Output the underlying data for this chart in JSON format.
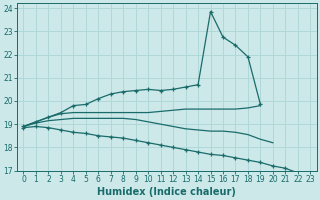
{
  "xlabel": "Humidex (Indice chaleur)",
  "bg_color": "#cce8e8",
  "grid_color": "#b0d8d8",
  "line_color": "#1a6b6b",
  "xlim": [
    -0.5,
    23.5
  ],
  "ylim": [
    17.0,
    24.2
  ],
  "yticks": [
    17,
    18,
    19,
    20,
    21,
    22,
    23,
    24
  ],
  "xticks": [
    0,
    1,
    2,
    3,
    4,
    5,
    6,
    7,
    8,
    9,
    10,
    11,
    12,
    13,
    14,
    15,
    16,
    17,
    18,
    19,
    20,
    21,
    22,
    23
  ],
  "lines": [
    {
      "x": [
        0,
        1,
        2,
        3,
        4,
        5,
        6,
        7,
        8,
        9,
        10,
        11,
        12,
        13,
        14,
        15,
        16,
        17,
        18,
        19
      ],
      "y": [
        18.9,
        19.1,
        19.3,
        19.5,
        19.8,
        19.85,
        20.1,
        20.3,
        20.4,
        20.45,
        20.5,
        20.45,
        20.5,
        20.6,
        20.7,
        23.85,
        22.75,
        22.4,
        21.9,
        19.85
      ],
      "has_markers": true
    },
    {
      "x": [
        0,
        1,
        2,
        3,
        4,
        5,
        6,
        7,
        8,
        9,
        10,
        11,
        12,
        13,
        14,
        15,
        16,
        17,
        18,
        19,
        20,
        21,
        22,
        23
      ],
      "y": [
        18.9,
        19.1,
        19.3,
        19.45,
        19.5,
        19.5,
        19.5,
        19.5,
        19.5,
        19.5,
        19.5,
        19.55,
        19.6,
        19.65,
        19.65,
        19.65,
        19.65,
        19.65,
        19.7,
        19.8,
        null,
        null,
        null,
        null
      ],
      "has_markers": false
    },
    {
      "x": [
        0,
        1,
        2,
        3,
        4,
        5,
        6,
        7,
        8,
        9,
        10,
        11,
        12,
        13,
        14,
        15,
        16,
        17,
        18,
        19,
        20,
        21,
        22,
        23
      ],
      "y": [
        18.9,
        19.05,
        19.15,
        19.2,
        19.25,
        19.25,
        19.25,
        19.25,
        19.25,
        19.2,
        19.1,
        19.0,
        18.9,
        18.8,
        18.75,
        18.7,
        18.7,
        18.65,
        18.55,
        18.35,
        18.2,
        null,
        null,
        null
      ],
      "has_markers": false
    },
    {
      "x": [
        0,
        1,
        2,
        3,
        4,
        5,
        6,
        7,
        8,
        9,
        10,
        11,
        12,
        13,
        14,
        15,
        16,
        17,
        18,
        19,
        20,
        21,
        22,
        23
      ],
      "y": [
        18.85,
        18.9,
        18.85,
        18.75,
        18.65,
        18.6,
        18.5,
        18.45,
        18.4,
        18.3,
        18.2,
        18.1,
        18.0,
        17.9,
        17.8,
        17.7,
        17.65,
        17.55,
        17.45,
        17.35,
        17.2,
        17.1,
        16.9,
        16.65
      ],
      "has_markers": true
    }
  ]
}
